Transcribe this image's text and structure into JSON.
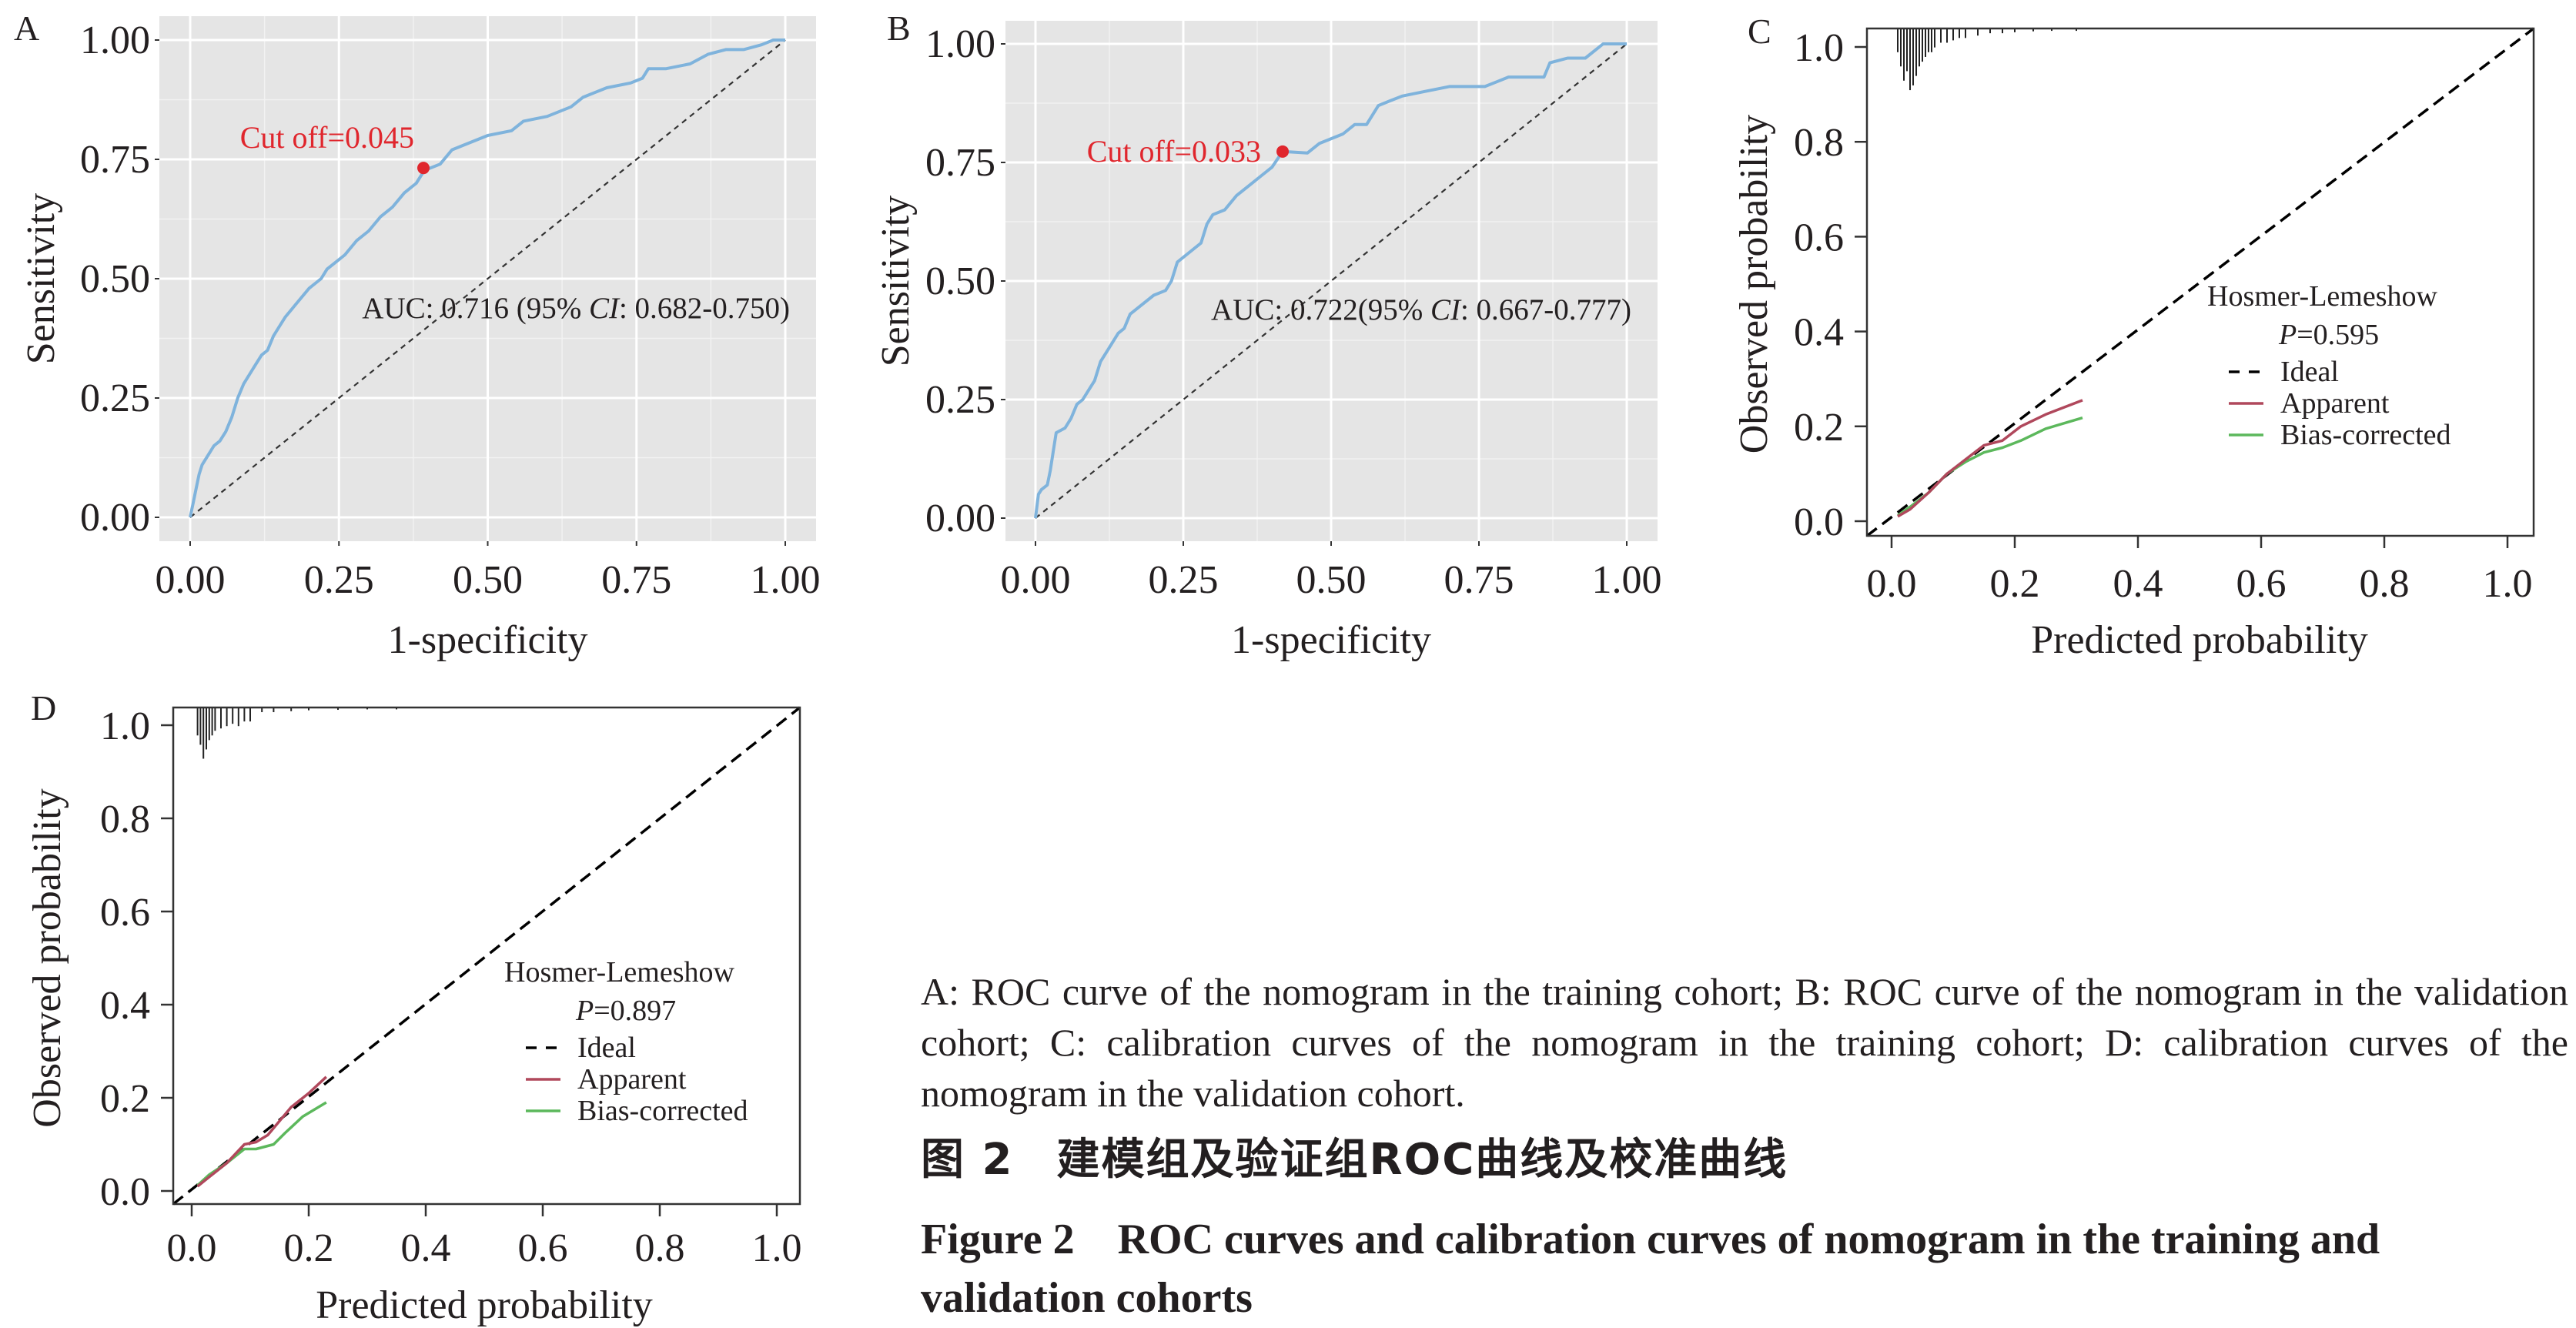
{
  "figure": {
    "caption_body": "A: ROC curve of the nomogram in the training cohort; B: ROC curve of the nomogram in the validation cohort; C: calibration curves of the nomogram in the training cohort; D: calibration curves of the nomogram in the validation cohort.",
    "caption_cn_label": "图 2",
    "caption_cn_title": "建模组及验证组ROC曲线及校准曲线",
    "caption_en_label": "Figure 2",
    "caption_en_title": "ROC curves and calibration curves of nomogram in the training and validation cohorts"
  },
  "colors": {
    "roc_line": "#7fb3dc",
    "cutoff": "#e0262d",
    "panel_bg": "#e5e5e5",
    "apparent": "#b0485c",
    "bias_corrected": "#5cb85c",
    "ideal": "#000000"
  },
  "chart_data": [
    {
      "panel": "A",
      "type": "line",
      "title": "",
      "xlabel": "1-specificity",
      "ylabel": "Sensitivity",
      "xlim": [
        0,
        1
      ],
      "ylim": [
        0,
        1
      ],
      "xticks": [
        "0.00",
        "0.25",
        "0.50",
        "0.75",
        "1.00"
      ],
      "yticks": [
        "0.00",
        "0.25",
        "0.50",
        "0.75",
        "1.00"
      ],
      "grid": true,
      "series": [
        {
          "name": "ROC",
          "x": [
            0,
            0.005,
            0.01,
            0.015,
            0.02,
            0.03,
            0.04,
            0.05,
            0.06,
            0.07,
            0.08,
            0.09,
            0.1,
            0.11,
            0.12,
            0.13,
            0.14,
            0.15,
            0.16,
            0.18,
            0.2,
            0.22,
            0.23,
            0.24,
            0.26,
            0.28,
            0.3,
            0.32,
            0.34,
            0.36,
            0.38,
            0.39,
            0.4,
            0.42,
            0.44,
            0.46,
            0.5,
            0.54,
            0.56,
            0.6,
            0.64,
            0.66,
            0.68,
            0.7,
            0.74,
            0.76,
            0.77,
            0.8,
            0.84,
            0.87,
            0.9,
            0.93,
            0.96,
            0.98,
            1
          ],
          "y": [
            0,
            0.03,
            0.06,
            0.09,
            0.11,
            0.13,
            0.15,
            0.16,
            0.18,
            0.21,
            0.25,
            0.28,
            0.3,
            0.32,
            0.34,
            0.35,
            0.38,
            0.4,
            0.42,
            0.45,
            0.48,
            0.5,
            0.52,
            0.53,
            0.55,
            0.58,
            0.6,
            0.63,
            0.65,
            0.68,
            0.7,
            0.72,
            0.73,
            0.74,
            0.77,
            0.78,
            0.8,
            0.81,
            0.83,
            0.84,
            0.86,
            0.88,
            0.89,
            0.9,
            0.91,
            0.92,
            0.94,
            0.94,
            0.95,
            0.97,
            0.98,
            0.98,
            0.99,
            1.0,
            1
          ]
        },
        {
          "name": "Reference",
          "x": [
            0,
            1
          ],
          "y": [
            0,
            1
          ]
        }
      ],
      "cutoff": {
        "label": "Cut off=0.045",
        "x": 0.392,
        "y": 0.732
      },
      "annotation": {
        "prefix": "AUC: 0.716 (95% ",
        "ci": "CI",
        "suffix": ": 0.682-0.750)"
      }
    },
    {
      "panel": "B",
      "type": "line",
      "title": "",
      "xlabel": "1-specificity",
      "ylabel": "Sensitivity",
      "xlim": [
        0,
        1
      ],
      "ylim": [
        0,
        1
      ],
      "xticks": [
        "0.00",
        "0.25",
        "0.50",
        "0.75",
        "1.00"
      ],
      "yticks": [
        "0.00",
        "0.25",
        "0.50",
        "0.75",
        "1.00"
      ],
      "grid": true,
      "series": [
        {
          "name": "ROC",
          "x": [
            0,
            0.005,
            0.01,
            0.02,
            0.025,
            0.03,
            0.035,
            0.05,
            0.06,
            0.07,
            0.08,
            0.09,
            0.1,
            0.11,
            0.12,
            0.14,
            0.15,
            0.16,
            0.18,
            0.2,
            0.22,
            0.23,
            0.24,
            0.26,
            0.28,
            0.29,
            0.3,
            0.32,
            0.34,
            0.36,
            0.38,
            0.4,
            0.418,
            0.46,
            0.48,
            0.52,
            0.54,
            0.56,
            0.58,
            0.6,
            0.62,
            0.66,
            0.7,
            0.76,
            0.78,
            0.8,
            0.86,
            0.87,
            0.9,
            0.93,
            0.95,
            0.96,
            1
          ],
          "y": [
            0,
            0.05,
            0.06,
            0.07,
            0.1,
            0.14,
            0.18,
            0.19,
            0.21,
            0.24,
            0.25,
            0.27,
            0.29,
            0.33,
            0.35,
            0.39,
            0.4,
            0.43,
            0.45,
            0.47,
            0.48,
            0.5,
            0.54,
            0.56,
            0.58,
            0.62,
            0.64,
            0.65,
            0.68,
            0.7,
            0.72,
            0.74,
            0.773,
            0.77,
            0.79,
            0.81,
            0.83,
            0.83,
            0.87,
            0.88,
            0.89,
            0.9,
            0.91,
            0.91,
            0.92,
            0.93,
            0.93,
            0.96,
            0.97,
            0.97,
            0.99,
            1.0,
            1
          ]
        },
        {
          "name": "Reference",
          "x": [
            0,
            1
          ],
          "y": [
            0,
            1
          ]
        }
      ],
      "cutoff": {
        "label": "Cut off=0.033",
        "x": 0.418,
        "y": 0.773
      },
      "annotation": {
        "prefix": "AUC: 0.722(95% ",
        "ci": "CI",
        "suffix": ": 0.667-0.777)"
      }
    },
    {
      "panel": "C",
      "type": "line",
      "title": "",
      "xlabel": "Predicted probability",
      "ylabel": "Observed probability",
      "xlim": [
        -0.04,
        1.04
      ],
      "ylim": [
        -0.04,
        1.04
      ],
      "xticks": [
        "0.0",
        "0.2",
        "0.4",
        "0.6",
        "0.8",
        "1.0"
      ],
      "yticks": [
        "0.0",
        "0.2",
        "0.4",
        "0.6",
        "0.8",
        "1.0"
      ],
      "grid": false,
      "legend": {
        "title": "Hosmer-Lemeshow",
        "p_label": "P",
        "p_value": "=0.595",
        "position": "center-right",
        "entries": [
          "Ideal",
          "Apparent",
          "Bias-corrected"
        ]
      },
      "series": [
        {
          "name": "Ideal",
          "x": [
            -0.04,
            1.04
          ],
          "y": [
            -0.04,
            1.04
          ]
        },
        {
          "name": "Apparent",
          "x": [
            0.01,
            0.03,
            0.06,
            0.09,
            0.12,
            0.15,
            0.18,
            0.21,
            0.25,
            0.31
          ],
          "y": [
            0.01,
            0.025,
            0.06,
            0.1,
            0.13,
            0.16,
            0.17,
            0.2,
            0.225,
            0.255
          ]
        },
        {
          "name": "Bias-corrected",
          "x": [
            0.01,
            0.03,
            0.06,
            0.09,
            0.12,
            0.15,
            0.18,
            0.21,
            0.25,
            0.31
          ],
          "y": [
            0.012,
            0.03,
            0.06,
            0.1,
            0.125,
            0.145,
            0.155,
            0.17,
            0.195,
            0.218
          ]
        }
      ],
      "rug": {
        "x": [
          0.01,
          0.015,
          0.02,
          0.025,
          0.03,
          0.035,
          0.04,
          0.045,
          0.05,
          0.055,
          0.06,
          0.065,
          0.07,
          0.08,
          0.09,
          0.1,
          0.11,
          0.12,
          0.14,
          0.16,
          0.18,
          0.2,
          0.23,
          0.26,
          0.3
        ],
        "len": [
          0.05,
          0.08,
          0.11,
          0.09,
          0.13,
          0.12,
          0.1,
          0.08,
          0.07,
          0.06,
          0.05,
          0.05,
          0.04,
          0.03,
          0.03,
          0.025,
          0.02,
          0.02,
          0.015,
          0.01,
          0.01,
          0.008,
          0.006,
          0.005,
          0.005
        ]
      }
    },
    {
      "panel": "D",
      "type": "line",
      "title": "",
      "xlabel": "Predicted probability",
      "ylabel": "Observed probability",
      "xlim": [
        -0.04,
        1.04
      ],
      "ylim": [
        -0.04,
        1.04
      ],
      "xticks": [
        "0.0",
        "0.2",
        "0.4",
        "0.6",
        "0.8",
        "1.0"
      ],
      "yticks": [
        "0.0",
        "0.2",
        "0.4",
        "0.6",
        "0.8",
        "1.0"
      ],
      "grid": false,
      "legend": {
        "title": "Hosmer-Lemeshow",
        "p_label": "P",
        "p_value": "=0.897",
        "position": "center-right",
        "entries": [
          "Ideal",
          "Apparent",
          "Bias-corrected"
        ]
      },
      "series": [
        {
          "name": "Ideal",
          "x": [
            -0.04,
            1.04
          ],
          "y": [
            -0.04,
            1.04
          ]
        },
        {
          "name": "Apparent",
          "x": [
            0.01,
            0.03,
            0.06,
            0.09,
            0.11,
            0.13,
            0.15,
            0.17,
            0.2,
            0.23
          ],
          "y": [
            0.01,
            0.03,
            0.06,
            0.1,
            0.105,
            0.12,
            0.15,
            0.18,
            0.21,
            0.245
          ]
        },
        {
          "name": "Bias-corrected",
          "x": [
            0.01,
            0.03,
            0.06,
            0.09,
            0.11,
            0.14,
            0.16,
            0.19,
            0.23
          ],
          "y": [
            0.012,
            0.035,
            0.06,
            0.09,
            0.09,
            0.1,
            0.125,
            0.16,
            0.19
          ]
        }
      ],
      "rug": {
        "x": [
          0.01,
          0.015,
          0.02,
          0.025,
          0.03,
          0.035,
          0.04,
          0.05,
          0.06,
          0.07,
          0.08,
          0.09,
          0.1,
          0.12,
          0.14,
          0.17,
          0.2,
          0.25,
          0.3,
          0.35
        ],
        "len": [
          0.06,
          0.08,
          0.11,
          0.09,
          0.07,
          0.06,
          0.05,
          0.045,
          0.04,
          0.035,
          0.04,
          0.03,
          0.03,
          0.01,
          0.01,
          0.008,
          0.006,
          0.005,
          0.004,
          0.004
        ]
      }
    }
  ]
}
